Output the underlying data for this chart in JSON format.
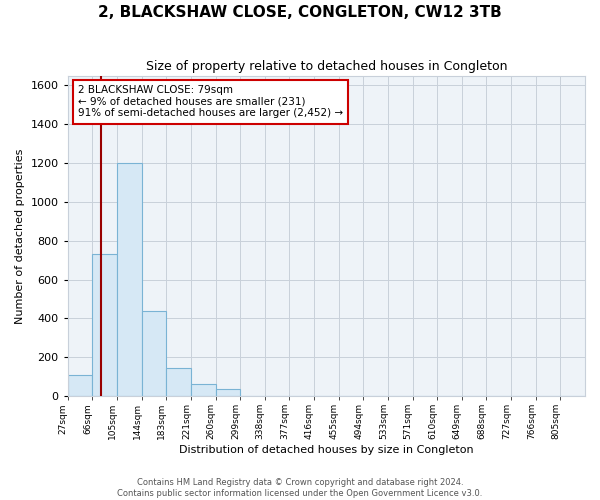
{
  "title": "2, BLACKSHAW CLOSE, CONGLETON, CW12 3TB",
  "subtitle": "Size of property relative to detached houses in Congleton",
  "xlabel": "Distribution of detached houses by size in Congleton",
  "ylabel": "Number of detached properties",
  "bar_labels": [
    "27sqm",
    "66sqm",
    "105sqm",
    "144sqm",
    "183sqm",
    "221sqm",
    "260sqm",
    "299sqm",
    "338sqm",
    "377sqm",
    "416sqm",
    "455sqm",
    "494sqm",
    "533sqm",
    "571sqm",
    "610sqm",
    "649sqm",
    "688sqm",
    "727sqm",
    "766sqm",
    "805sqm"
  ],
  "bar_heights": [
    110,
    730,
    1200,
    440,
    145,
    60,
    35,
    0,
    0,
    0,
    0,
    0,
    0,
    0,
    0,
    0,
    0,
    0,
    0,
    0,
    0
  ],
  "bar_color": "#d6e8f5",
  "bar_edge_color": "#7ab3d4",
  "ylim": [
    0,
    1650
  ],
  "yticks": [
    0,
    200,
    400,
    600,
    800,
    1000,
    1200,
    1400,
    1600
  ],
  "marker_color": "#990000",
  "annotation_line1": "2 BLACKSHAW CLOSE: 79sqm",
  "annotation_line2": "← 9% of detached houses are smaller (231)",
  "annotation_line3": "91% of semi-detached houses are larger (2,452) →",
  "footer_line1": "Contains HM Land Registry data © Crown copyright and database right 2024.",
  "footer_line2": "Contains public sector information licensed under the Open Government Licence v3.0.",
  "background_color": "#ffffff",
  "plot_bg_color": "#eef3f8",
  "grid_color": "#c8d0da",
  "figsize": [
    6.0,
    5.0
  ],
  "dpi": 100
}
